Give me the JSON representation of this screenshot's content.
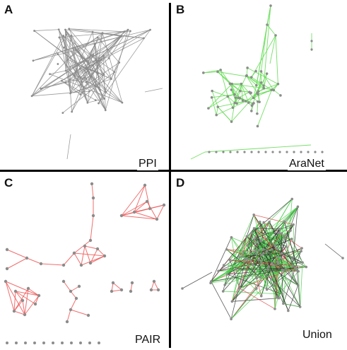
{
  "panels": [
    {
      "letter": "A",
      "label": "PPI",
      "edge_color": "#8a8a8a",
      "node_color": "#8c8c8c"
    },
    {
      "letter": "B",
      "label": "AraNet",
      "edge_color": "#66dd55",
      "node_color": "#8c8c8c"
    },
    {
      "letter": "C",
      "label": "PAIR",
      "edge_color": "#ee5555",
      "node_color": "#8c8c8c"
    },
    {
      "letter": "D",
      "label": "Union",
      "edge_colors": [
        "#333333",
        "#44cc44",
        "#dd4444"
      ],
      "node_color": "#8c8c8c"
    }
  ],
  "divider_color": "#000000"
}
